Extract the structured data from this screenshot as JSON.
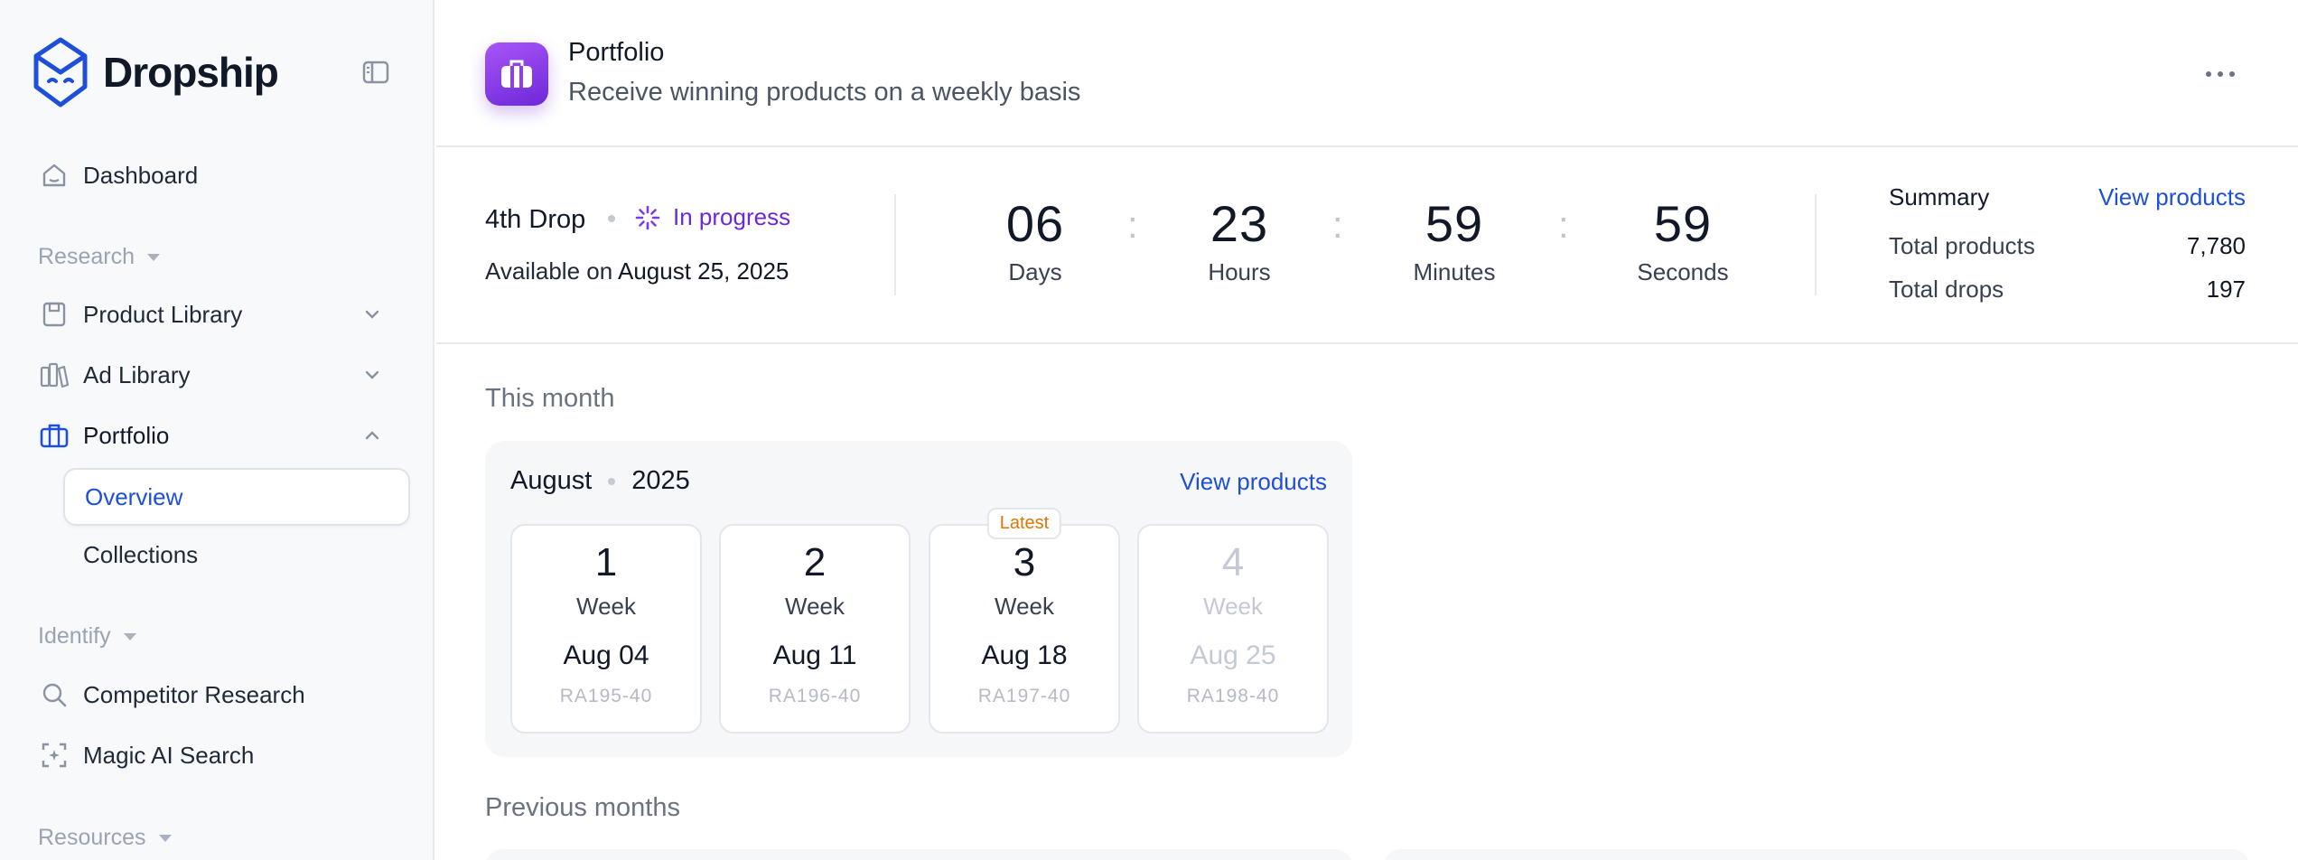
{
  "brand": {
    "name": "Dropship"
  },
  "sidebar": {
    "items": [
      {
        "label": "Dashboard",
        "icon": "home-icon"
      },
      {
        "label": "Product Library",
        "icon": "box-icon"
      },
      {
        "label": "Ad Library",
        "icon": "books-icon"
      },
      {
        "label": "Portfolio",
        "icon": "briefcase-icon"
      },
      {
        "label": "Competitor Research",
        "icon": "search-icon"
      },
      {
        "label": "Magic AI Search",
        "icon": "ai-scan-icon"
      }
    ],
    "sections": {
      "research": "Research",
      "identify": "Identify",
      "resources": "Resources"
    },
    "portfolio_sub": [
      "Overview",
      "Collections"
    ]
  },
  "header": {
    "title": "Portfolio",
    "subtitle": "Receive winning products on a weekly basis"
  },
  "drop": {
    "name": "4th Drop",
    "status": "In progress",
    "available_prefix": "Available on",
    "available_date": "August 25, 2025"
  },
  "countdown": {
    "days": "06",
    "days_label": "Days",
    "hours": "23",
    "hours_label": "Hours",
    "minutes": "59",
    "minutes_label": "Minutes",
    "seconds": "59",
    "seconds_label": "Seconds"
  },
  "summary": {
    "title": "Summary",
    "link": "View products",
    "total_products_label": "Total products",
    "total_products": "7,780",
    "total_drops_label": "Total drops",
    "total_drops": "197"
  },
  "this_month": {
    "section_title": "This month",
    "month": "August",
    "year": "2025",
    "link": "View products",
    "weeks": [
      {
        "num": "1",
        "label": "Week",
        "date": "Aug 04",
        "code": "RA195-40"
      },
      {
        "num": "2",
        "label": "Week",
        "date": "Aug 11",
        "code": "RA196-40"
      },
      {
        "num": "3",
        "label": "Week",
        "date": "Aug 18",
        "code": "RA197-40",
        "badge": "Latest"
      },
      {
        "num": "4",
        "label": "Week",
        "date": "Aug 25",
        "code": "RA198-40"
      }
    ]
  },
  "previous_months": {
    "section_title": "Previous months"
  },
  "colors": {
    "accent": "#1e4fd8",
    "brand_purple": "#7c3aed",
    "status_purple": "#6d28d9",
    "latest_orange": "#d97706"
  }
}
